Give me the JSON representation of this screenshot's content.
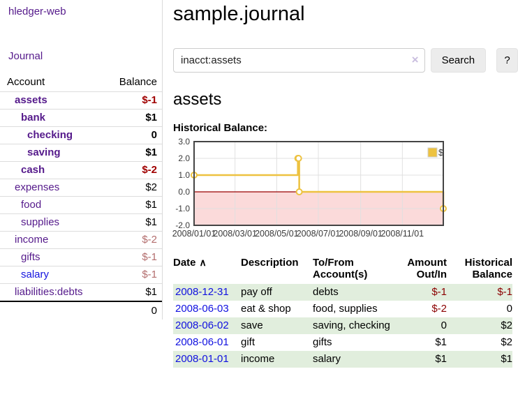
{
  "app_title": "hledger-web",
  "colors": {
    "link_purple": "#551A8B",
    "link_blue": "#1414DF",
    "negative_strong": "#A00000",
    "negative_soft": "#B36D6D",
    "negative_table": "#8B0000",
    "row_green": "#E1EEDD",
    "accent_gold": "#EDC240"
  },
  "sidebar": {
    "journal_link": "Journal",
    "account_header": "Account",
    "balance_header": "Balance",
    "accounts": [
      {
        "name": "assets",
        "balance": "$-1",
        "depth": 1,
        "matched": true,
        "neg": "strong",
        "link": "purple"
      },
      {
        "name": "bank",
        "balance": "$1",
        "depth": 2,
        "matched": true,
        "neg": null,
        "link": "purple"
      },
      {
        "name": "checking",
        "balance": "0",
        "depth": 3,
        "matched": true,
        "neg": null,
        "link": "purple"
      },
      {
        "name": "saving",
        "balance": "$1",
        "depth": 3,
        "matched": true,
        "neg": null,
        "link": "purple"
      },
      {
        "name": "cash",
        "balance": "$-2",
        "depth": 2,
        "matched": true,
        "neg": "strong",
        "link": "purple"
      },
      {
        "name": "expenses",
        "balance": "$2",
        "depth": 1,
        "matched": false,
        "neg": null,
        "link": "purple"
      },
      {
        "name": "food",
        "balance": "$1",
        "depth": 2,
        "matched": false,
        "neg": null,
        "link": "purple"
      },
      {
        "name": "supplies",
        "balance": "$1",
        "depth": 2,
        "matched": false,
        "neg": null,
        "link": "purple"
      },
      {
        "name": "income",
        "balance": "$-2",
        "depth": 1,
        "matched": false,
        "neg": "soft",
        "link": "purple"
      },
      {
        "name": "gifts",
        "balance": "$-1",
        "depth": 2,
        "matched": false,
        "neg": "soft",
        "link": "purple"
      },
      {
        "name": "salary",
        "balance": "$-1",
        "depth": 2,
        "matched": false,
        "neg": "soft",
        "link": "blue"
      },
      {
        "name": "liabilities:debts",
        "balance": "$1",
        "depth": 1,
        "matched": false,
        "neg": null,
        "link": "purple"
      }
    ],
    "total": "0"
  },
  "main": {
    "title": "sample.journal",
    "search": {
      "value": "inacct:assets",
      "clear_icon": "×",
      "search_button": "Search",
      "help_button": "?"
    },
    "account_heading": "assets",
    "chart_title": "Historical Balance:"
  },
  "chart_data": {
    "type": "line",
    "title": "Historical Balance",
    "step": true,
    "x_unit": "days since 2008-01-01",
    "x_range": [
      0,
      365
    ],
    "ylim": [
      -2,
      3
    ],
    "grid": true,
    "legend_position": "top-right",
    "legend": [
      {
        "label": "$",
        "color": "#EDC240"
      }
    ],
    "y_ticks": [
      {
        "value": 3,
        "label": "3.0"
      },
      {
        "value": 2,
        "label": "2.0"
      },
      {
        "value": 1,
        "label": "1.0"
      },
      {
        "value": 0,
        "label": "0.0"
      },
      {
        "value": -1,
        "label": "-1.0"
      },
      {
        "value": -2,
        "label": "-2.0"
      }
    ],
    "x_ticks": [
      {
        "day": 0,
        "label": "2008/01/01"
      },
      {
        "day": 60,
        "label": "2008/03/01"
      },
      {
        "day": 121,
        "label": "2008/05/01"
      },
      {
        "day": 182,
        "label": "2008/07/01"
      },
      {
        "day": 244,
        "label": "2008/09/01"
      },
      {
        "day": 305,
        "label": "2008/11/01"
      }
    ],
    "series": [
      {
        "name": "$",
        "color": "#EDC240",
        "points": [
          {
            "day": 0,
            "date": "2008-01-01",
            "value": 1
          },
          {
            "day": 152,
            "date": "2008-06-01",
            "value": 2
          },
          {
            "day": 153,
            "date": "2008-06-02",
            "value": 2
          },
          {
            "day": 154,
            "date": "2008-06-03",
            "value": 0
          },
          {
            "day": 365,
            "date": "2008-12-31",
            "value": -1
          }
        ]
      }
    ],
    "negative_region": {
      "from": 0,
      "to": -2,
      "color": "#FBDADA"
    },
    "zero_line_color": "#990000",
    "grid_color": "#E0E0E0",
    "border_color": "#444444"
  },
  "register": {
    "headers": {
      "date": "Date",
      "sort_indicator": "∧",
      "description": "Description",
      "accounts": "To/From Account(s)",
      "amount": "Amount Out/In",
      "balance": "Historical Balance"
    },
    "rows": [
      {
        "date": "2008-12-31",
        "description": "pay off",
        "accounts": "debts",
        "amount": "$-1",
        "amount_neg": true,
        "balance": "$-1",
        "balance_neg": true
      },
      {
        "date": "2008-06-03",
        "description": "eat & shop",
        "accounts": "food, supplies",
        "amount": "$-2",
        "amount_neg": true,
        "balance": "0",
        "balance_neg": false
      },
      {
        "date": "2008-06-02",
        "description": "save",
        "accounts": "saving, checking",
        "amount": "0",
        "amount_neg": false,
        "balance": "$2",
        "balance_neg": false
      },
      {
        "date": "2008-06-01",
        "description": "gift",
        "accounts": "gifts",
        "amount": "$1",
        "amount_neg": false,
        "balance": "$2",
        "balance_neg": false
      },
      {
        "date": "2008-01-01",
        "description": "income",
        "accounts": "salary",
        "amount": "$1",
        "amount_neg": false,
        "balance": "$1",
        "balance_neg": false
      }
    ]
  }
}
